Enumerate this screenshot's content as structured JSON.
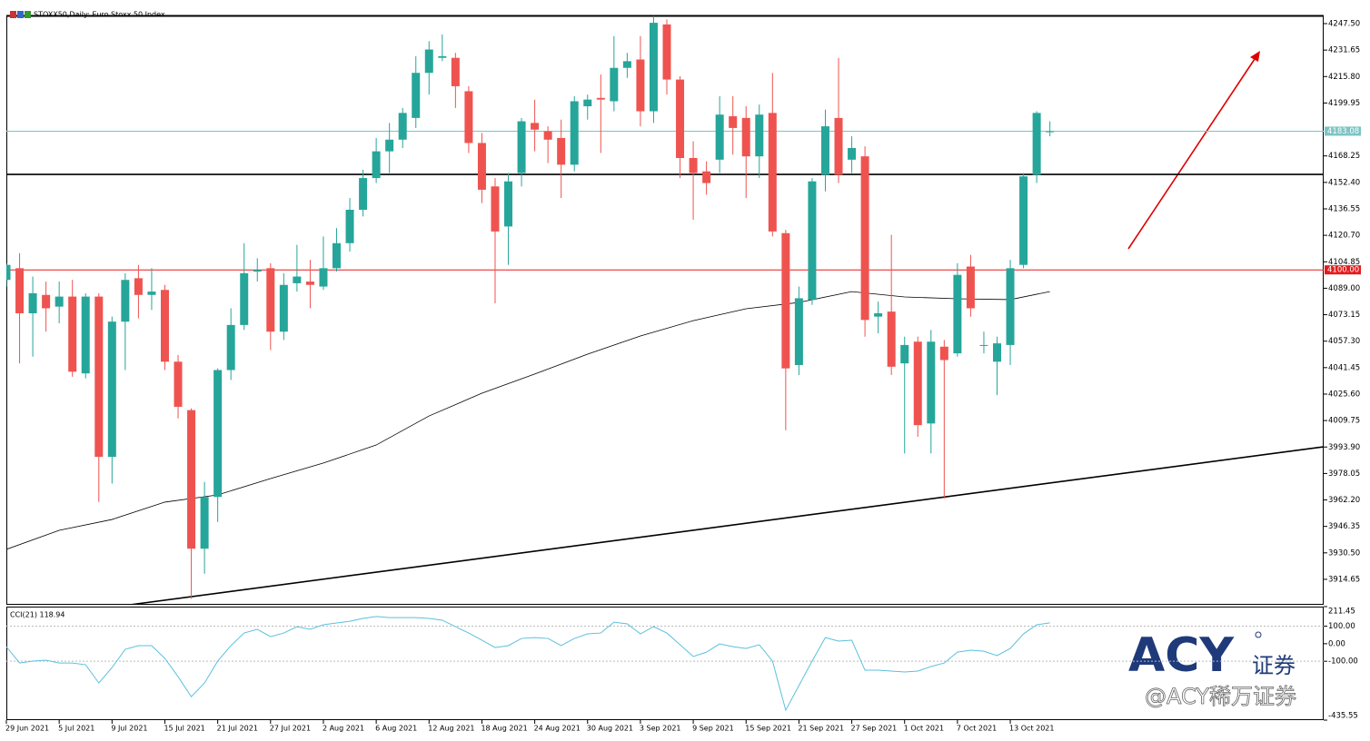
{
  "chart_data": [
    {
      "type": "candlestick",
      "title": "STOXX50,Daily: Euro Stoxx 50 Index",
      "categories": [
        "29 Jun 2021",
        null,
        null,
        null,
        "5 Jul 2021",
        null,
        null,
        null,
        "9 Jul 2021",
        null,
        null,
        null,
        "15 Jul 2021",
        null,
        null,
        null,
        "21 Jul 2021",
        null,
        null,
        null,
        "27 Jul 2021",
        null,
        null,
        null,
        "2 Aug 2021",
        null,
        null,
        null,
        "6 Aug 2021",
        null,
        null,
        null,
        "12 Aug 2021",
        null,
        null,
        null,
        "18 Aug 2021",
        null,
        null,
        null,
        "24 Aug 2021",
        null,
        null,
        null,
        "30 Aug 2021",
        null,
        null,
        null,
        "3 Sep 2021",
        null,
        null,
        null,
        "9 Sep 2021",
        null,
        null,
        null,
        "15 Sep 2021",
        null,
        null,
        null,
        "21 Sep 2021",
        null,
        null,
        null,
        "27 Sep 2021",
        null,
        null,
        null,
        "1 Oct 2021",
        null,
        null,
        null,
        "7 Oct 2021",
        null,
        null,
        null,
        "13 Oct 2021",
        null,
        null,
        null
      ],
      "open": [
        4094,
        4101,
        4074,
        4085,
        4078,
        4084,
        4038,
        4084,
        3988,
        4069,
        4095,
        4085,
        4088,
        4045,
        4016,
        3933,
        3964,
        4040,
        4067,
        4099,
        4101,
        4063,
        4092,
        4093,
        4090,
        4101,
        4116,
        4136,
        4155,
        4171,
        4178,
        4191,
        4218,
        4227,
        4227,
        4207,
        4176,
        4150,
        4126,
        4158,
        4188,
        4183,
        4179,
        4163,
        4198,
        4203,
        4201,
        4221,
        4226,
        4195,
        4247,
        4214,
        4167,
        4159,
        4166,
        4192,
        4191,
        4168,
        4194,
        4122,
        4043,
        4082,
        4157,
        4191,
        4166,
        4168,
        4072,
        4075,
        4044,
        4057,
        4008,
        4054,
        4050,
        4102,
        4055,
        4045,
        4055,
        4103,
        4157,
        4183
      ],
      "high": [
        4104,
        4110,
        4096,
        4093,
        4093,
        4094,
        4086,
        4086,
        4072,
        4098,
        4103,
        4101,
        4091,
        4049,
        4017,
        3973,
        4041,
        4077,
        4116,
        4107,
        4104,
        4098,
        4115,
        4106,
        4120,
        4125,
        4143,
        4160,
        4179,
        4188,
        4197,
        4228,
        4237,
        4241,
        4230,
        4210,
        4182,
        4155,
        4158,
        4191,
        4202,
        4186,
        4190,
        4204,
        4205,
        4217,
        4240,
        4230,
        4240,
        4252,
        4250,
        4216,
        4177,
        4165,
        4204,
        4204,
        4198,
        4199,
        4218,
        4124,
        4090,
        4155,
        4196,
        4227,
        4180,
        4174,
        4081,
        4121,
        4060,
        4060,
        4064,
        4058,
        4104,
        4109,
        4063,
        4060,
        4106,
        4158,
        4195,
        4189
      ],
      "low": [
        4090,
        4044,
        4048,
        4063,
        4068,
        4036,
        4035,
        3961,
        3972,
        4040,
        4071,
        4076,
        4040,
        4011,
        3903,
        3918,
        3949,
        4034,
        4064,
        4093,
        4052,
        4058,
        4087,
        4077,
        4088,
        4099,
        4111,
        4132,
        4152,
        4158,
        4173,
        4185,
        4205,
        4225,
        4197,
        4170,
        4140,
        4080,
        4103,
        4150,
        4171,
        4164,
        4143,
        4159,
        4190,
        4170,
        4195,
        4215,
        4186,
        4188,
        4205,
        4155,
        4130,
        4145,
        4158,
        4169,
        4143,
        4155,
        4120,
        4004,
        4037,
        4079,
        4147,
        4152,
        4158,
        4060,
        4062,
        4037,
        3990,
        4000,
        3990,
        3963,
        4048,
        4072,
        4050,
        4025,
        4043,
        4101,
        4152,
        4180
      ],
      "close": [
        4103,
        4074,
        4086,
        4077,
        4084,
        4039,
        4084,
        3988,
        4069,
        4094,
        4085,
        4087,
        4045,
        4018,
        3933,
        3964,
        4040,
        4067,
        4098,
        4100,
        4063,
        4091,
        4096,
        4091,
        4101,
        4116,
        4136,
        4155,
        4171,
        4178,
        4194,
        4218,
        4232,
        4228,
        4210,
        4176,
        4148,
        4123,
        4153,
        4189,
        4184,
        4178,
        4163,
        4201,
        4202,
        4202,
        4221,
        4225,
        4195,
        4248,
        4214,
        4167,
        4158,
        4152,
        4193,
        4185,
        4168,
        4193,
        4123,
        4041,
        4083,
        4153,
        4186,
        4157,
        4173,
        4070,
        4074,
        4042,
        4055,
        4007,
        4057,
        4046,
        4097,
        4077,
        4055,
        4056,
        4101,
        4156,
        4194,
        4183
      ],
      "up_color": "#26a69a",
      "down_color": "#ef5350",
      "ylim": [
        3899.4,
        4252.4
      ],
      "yticks": [
        {
          "value": 4247.5,
          "label": "4247.50"
        },
        {
          "value": 4231.65,
          "label": "4231.65"
        },
        {
          "value": 4215.8,
          "label": "4215.80"
        },
        {
          "value": 4199.95,
          "label": "4199.95"
        },
        {
          "value": 4168.25,
          "label": "4168.25"
        },
        {
          "value": 4152.4,
          "label": "4152.40"
        },
        {
          "value": 4136.55,
          "label": "4136.55"
        },
        {
          "value": 4120.7,
          "label": "4120.70"
        },
        {
          "value": 4104.85,
          "label": "4104.85"
        },
        {
          "value": 4089,
          "label": "4089.00"
        },
        {
          "value": 4073.15,
          "label": "4073.15"
        },
        {
          "value": 4057.3,
          "label": "4057.30"
        },
        {
          "value": 4041.45,
          "label": "4041.45"
        },
        {
          "value": 4025.6,
          "label": "4025.60"
        },
        {
          "value": 4009.75,
          "label": "4009.75"
        },
        {
          "value": 3993.9,
          "label": "3993.90"
        },
        {
          "value": 3978.05,
          "label": "3978.05"
        },
        {
          "value": 3962.2,
          "label": "3962.20"
        },
        {
          "value": 3946.35,
          "label": "3946.35"
        },
        {
          "value": 3930.5,
          "label": "3930.50"
        },
        {
          "value": 3914.65,
          "label": "3914.65"
        }
      ],
      "lines": [
        {
          "value": 4183.08,
          "label": "4183.08",
          "color": "#7cc4c4"
        },
        {
          "value": 4100,
          "label": "4100.00",
          "color": "#e51c1c"
        },
        {
          "value": 4157.2,
          "color": "#000000"
        }
      ],
      "ma": {
        "x": [
          0,
          4,
          8,
          12,
          16,
          20,
          24,
          28,
          32,
          36,
          40,
          44,
          48,
          52,
          56,
          60,
          64,
          68,
          72,
          76,
          79
        ],
        "values": [
          3932.6,
          3944.0,
          3950.5,
          3960.9,
          3965.2,
          3975.0,
          3984.3,
          3995.1,
          4012.5,
          4026.1,
          4037.6,
          4049.5,
          4060.4,
          4069.6,
          4076.7,
          4080.5,
          4087.0,
          4083.8,
          4082.7,
          4082.2,
          4087.0
        ],
        "color": "#000000"
      },
      "trendline": {
        "x": [
          9.35,
          99.7
        ],
        "values": [
          3899.4,
          3994.0
        ],
        "color": "#000000"
      },
      "logo": "ACY",
      "logo_sub": "证券",
      "watermark": "@ACY稀万证券"
    },
    {
      "type": "line",
      "title": "CCI(21) 118.94",
      "color": "#5bc0de",
      "values": [
        -17,
        -110,
        -99,
        -94,
        -110,
        -110,
        -120,
        -224,
        -136,
        -32,
        -11,
        -11,
        -84,
        -188,
        -302,
        -224,
        -99,
        -11,
        61,
        82,
        40,
        61,
        97,
        82,
        108,
        118,
        128,
        144,
        155,
        149,
        149,
        149,
        144,
        134,
        97,
        61,
        20,
        -22,
        -11,
        30,
        35,
        30,
        -11,
        30,
        56,
        61,
        123,
        113,
        56,
        97,
        61,
        -6,
        -73,
        -48,
        -1,
        -17,
        -27,
        -6,
        -99,
        -379,
        -239,
        -99,
        35,
        15,
        20,
        -151,
        -151,
        -156,
        -161,
        -156,
        -130,
        -110,
        -48,
        -37,
        -43,
        -68,
        -27,
        56,
        108,
        118.94
      ],
      "ylim": [
        -435.55,
        211.45
      ],
      "yticks": [
        211.45,
        {
          "value": 100,
          "label": "100.00"
        },
        {
          "value": 0,
          "label": "0.00"
        },
        {
          "value": -100,
          "label": "-100.00"
        },
        -435.55
      ],
      "levels": [
        100,
        -100
      ]
    }
  ]
}
